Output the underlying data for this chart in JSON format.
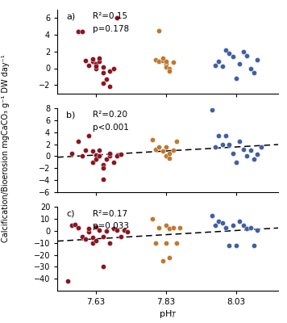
{
  "xlabel": "pH$_T$",
  "ylabel": "Calcification/Bioerosion mgCaCO₃ g⁻¹ DW day⁻¹",
  "xticks": [
    7.63,
    7.83,
    8.03
  ],
  "xlim": [
    7.52,
    8.15
  ],
  "colors": {
    "low": "#8B1520",
    "mid": "#C07830",
    "high": "#4060A0"
  },
  "panels": [
    {
      "label": "a)",
      "r2": "R²=0.15",
      "p": "p=0.178",
      "ylim": [
        -3,
        7
      ],
      "yticks": [
        -2,
        0,
        2,
        4,
        6
      ],
      "has_trendline": false,
      "data_low_x": [
        7.58,
        7.6,
        7.61,
        7.62,
        7.62,
        7.63,
        7.63,
        7.63,
        7.64,
        7.64,
        7.65,
        7.65,
        7.65,
        7.66,
        7.67,
        7.67,
        7.68,
        7.69,
        7.59
      ],
      "data_low_y": [
        4.4,
        0.9,
        0.3,
        0.8,
        1.1,
        0.5,
        0.0,
        0.2,
        0.8,
        1.2,
        0.1,
        -0.5,
        -1.8,
        -1.3,
        -2.2,
        -0.3,
        0.0,
        6.0,
        4.4
      ],
      "data_mid_x": [
        7.8,
        7.81,
        7.81,
        7.82,
        7.82,
        7.83,
        7.83,
        7.83,
        7.84,
        7.84,
        7.85
      ],
      "data_mid_y": [
        1.0,
        0.8,
        4.5,
        0.9,
        1.2,
        0.5,
        0.1,
        0.8,
        0.0,
        -0.3,
        0.7
      ],
      "data_high_x": [
        7.97,
        7.98,
        7.99,
        8.0,
        8.01,
        8.02,
        8.03,
        8.04,
        8.05,
        8.06,
        8.07,
        8.08,
        8.09
      ],
      "data_high_y": [
        0.3,
        0.8,
        0.2,
        2.2,
        1.8,
        1.4,
        -1.2,
        0.5,
        2.0,
        1.5,
        0.0,
        -0.5,
        1.0
      ]
    },
    {
      "label": "b)",
      "r2": "R²=0.20",
      "p": "p<0.001",
      "ylim": [
        -6,
        8
      ],
      "yticks": [
        -6,
        -4,
        -2,
        0,
        2,
        4,
        6,
        8
      ],
      "has_trendline": true,
      "trend_x": [
        7.52,
        8.15
      ],
      "trend_y": [
        -0.18,
        1.95
      ],
      "data_low_x": [
        7.56,
        7.58,
        7.59,
        7.6,
        7.61,
        7.62,
        7.62,
        7.63,
        7.63,
        7.64,
        7.64,
        7.65,
        7.65,
        7.65,
        7.66,
        7.67,
        7.67,
        7.68,
        7.69,
        7.7
      ],
      "data_low_y": [
        0.5,
        2.5,
        0.0,
        1.0,
        3.5,
        0.8,
        -1.0,
        0.2,
        -0.5,
        1.0,
        0.0,
        -1.5,
        -2.0,
        -3.8,
        -0.5,
        0.0,
        0.5,
        -1.0,
        0.0,
        0.3
      ],
      "data_mid_x": [
        7.79,
        7.8,
        7.81,
        7.82,
        7.83,
        7.83,
        7.84,
        7.84,
        7.85,
        7.86
      ],
      "data_mid_y": [
        2.8,
        1.2,
        1.5,
        0.8,
        1.5,
        0.0,
        0.5,
        -0.3,
        1.0,
        2.5
      ],
      "data_high_x": [
        7.96,
        7.97,
        7.98,
        7.99,
        8.0,
        8.01,
        8.02,
        8.03,
        8.04,
        8.05,
        8.06,
        8.07,
        8.08,
        8.09,
        8.1
      ],
      "data_high_y": [
        7.8,
        1.5,
        3.5,
        2.0,
        3.5,
        2.0,
        0.5,
        -1.0,
        2.5,
        1.2,
        0.0,
        1.0,
        -0.5,
        0.3,
        1.5
      ]
    },
    {
      "label": "c)",
      "r2": "R²=0.17",
      "p": "p=0.033",
      "ylim": [
        -50,
        20
      ],
      "yticks": [
        -40,
        -30,
        -20,
        -10,
        0,
        10,
        20
      ],
      "has_trendline": true,
      "trend_x": [
        7.52,
        8.15
      ],
      "trend_y": [
        -8.5,
        2.5
      ],
      "data_low_x": [
        7.55,
        7.56,
        7.57,
        7.58,
        7.59,
        7.6,
        7.61,
        7.61,
        7.62,
        7.62,
        7.63,
        7.63,
        7.64,
        7.65,
        7.65,
        7.66,
        7.67,
        7.68,
        7.69,
        7.7,
        7.71,
        7.72
      ],
      "data_low_y": [
        -42.0,
        5.0,
        5.5,
        3.0,
        -5.0,
        -7.0,
        -0.5,
        2.0,
        -10.0,
        -5.5,
        -8.0,
        3.5,
        0.5,
        -5.0,
        -30.0,
        0.0,
        -10.0,
        2.0,
        1.0,
        -5.0,
        0.5,
        -0.5
      ],
      "data_mid_x": [
        7.79,
        7.8,
        7.81,
        7.82,
        7.83,
        7.83,
        7.84,
        7.84,
        7.85,
        7.86,
        7.87
      ],
      "data_mid_y": [
        10.0,
        -10.0,
        3.0,
        -25.0,
        5.0,
        -10.0,
        2.0,
        -22.5,
        3.0,
        -10.0,
        2.5
      ],
      "data_high_x": [
        7.96,
        7.97,
        7.98,
        7.99,
        8.0,
        8.01,
        8.02,
        8.03,
        8.04,
        8.05,
        8.06,
        8.07,
        8.08,
        8.09
      ],
      "data_high_y": [
        13.0,
        5.0,
        8.0,
        7.0,
        3.0,
        -12.0,
        5.0,
        -12.0,
        8.0,
        5.0,
        2.0,
        3.0,
        -12.0,
        1.0
      ]
    }
  ]
}
